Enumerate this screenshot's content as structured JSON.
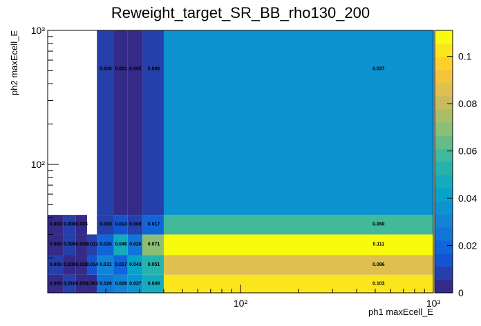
{
  "chart_data": {
    "type": "heatmap",
    "title": "Reweight_target_SR_BB_rho130_200",
    "x_label": "ph1 maxEcell_E",
    "y_label": "ph2 maxEcell_E",
    "x_log": true,
    "y_log": true,
    "x_bins": [
      10,
      12,
      14,
      16,
      18,
      22,
      26,
      31,
      40,
      1000
    ],
    "y_bins": [
      11,
      15,
      21,
      30,
      42,
      1000
    ],
    "values": [
      [
        0.003,
        0.01,
        0.003,
        0.003,
        0.026,
        0.028,
        0.037,
        0.049,
        0.103
      ],
      [
        0.009,
        0.0,
        0.003,
        0.014,
        0.031,
        0.017,
        0.043,
        0.051,
        0.086
      ],
      [
        0.003,
        0.006,
        0.005,
        0.011,
        0.02,
        0.046,
        0.026,
        0.071,
        0.111
      ],
      [
        0.003,
        0.006,
        0.003,
        null,
        0.009,
        0.014,
        0.009,
        0.017,
        0.06
      ],
      [
        null,
        null,
        null,
        null,
        0.006,
        0.003,
        0.005,
        0.006,
        0.037
      ]
    ],
    "value_labels": [
      [
        "0.003",
        "0.010",
        "0.003",
        "0.003",
        "0.026",
        "0.028",
        "0.037",
        "0.049",
        "0.103"
      ],
      [
        "0.009",
        "0.000",
        "0.003",
        "0.014",
        "0.031",
        "0.017",
        "0.043",
        "0.051",
        "0.086"
      ],
      [
        "0.003",
        "0.006",
        "0.005",
        "0.011",
        "0.020",
        "0.046",
        "0.026",
        "0.071",
        "0.111"
      ],
      [
        "0.003",
        "0.006",
        "0.003",
        null,
        "0.009",
        "0.014",
        "0.009",
        "0.017",
        "0.060"
      ],
      [
        null,
        null,
        null,
        null,
        "0.006",
        "0.003",
        "0.005",
        "0.006",
        "0.037"
      ]
    ],
    "xlim": [
      10,
      1000
    ],
    "ylim": [
      11,
      1000
    ],
    "xticks": [
      {
        "value": 100,
        "label": "10²"
      },
      {
        "value": 1000,
        "label": "10³"
      }
    ],
    "yticks": [
      {
        "value": 100,
        "label": "10²"
      },
      {
        "value": 1000,
        "label": "10³"
      }
    ],
    "x_minor_ticks": [
      20,
      30,
      40,
      50,
      60,
      70,
      80,
      90,
      200,
      300,
      400,
      500,
      600,
      700,
      800,
      900
    ],
    "y_minor_ticks": [
      20,
      30,
      40,
      50,
      60,
      70,
      80,
      90,
      200,
      300,
      400,
      500,
      600,
      700,
      800,
      900
    ],
    "zlim": [
      0,
      0.111
    ],
    "zticks": [
      0,
      0.02,
      0.04,
      0.06,
      0.08,
      0.1
    ],
    "palette": "kBird",
    "contours": 20
  }
}
